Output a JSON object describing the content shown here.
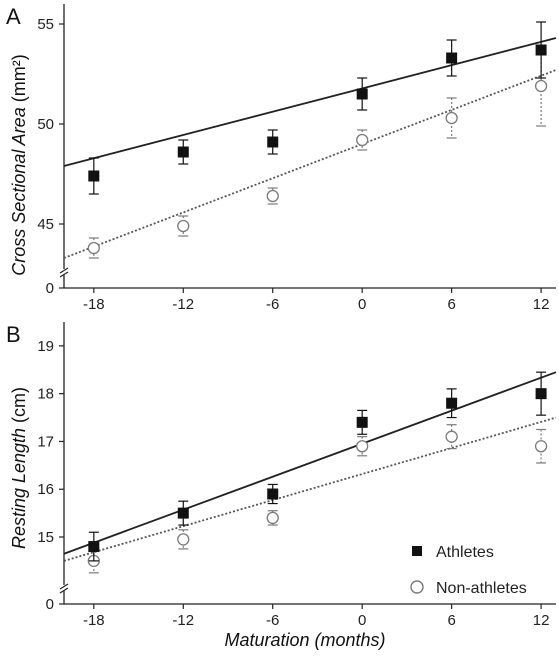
{
  "chart_data": [
    {
      "type": "scatter",
      "panel": "A",
      "ylabel": "Cross Sectional Area",
      "ylabel_unit": " (mm²)",
      "x": [
        -18,
        -12,
        -6,
        0,
        6,
        12
      ],
      "xlim": [
        -20,
        13
      ],
      "ylim": [
        43,
        56
      ],
      "y_axis_break": true,
      "y_break_label": "0",
      "yticks": [
        45,
        50,
        55
      ],
      "xticklabels": [
        "-18",
        "-12",
        "-6",
        "0",
        "6",
        "12"
      ],
      "grid": false,
      "series": [
        {
          "name": "Athletes",
          "marker": "filled-square",
          "line_style": "solid",
          "values": [
            47.4,
            48.6,
            49.1,
            51.5,
            53.3,
            53.7
          ],
          "errors": [
            0.9,
            0.6,
            0.6,
            0.8,
            0.9,
            1.4
          ],
          "fit": {
            "x0": -20,
            "y0": 47.9,
            "x1": 13,
            "y1": 54.3
          }
        },
        {
          "name": "Non-athletes",
          "marker": "open-circle",
          "line_style": "dotted",
          "values": [
            43.8,
            44.9,
            46.4,
            49.2,
            50.3,
            51.9
          ],
          "errors": [
            0.5,
            0.5,
            0.4,
            0.5,
            1.0,
            2.0
          ],
          "fit": {
            "x0": -20,
            "y0": 43.3,
            "x1": 13,
            "y1": 52.7
          }
        }
      ]
    },
    {
      "type": "scatter",
      "panel": "B",
      "ylabel": "Resting Length",
      "ylabel_unit": " (cm)",
      "xlabel": "Maturation (months)",
      "x": [
        -18,
        -12,
        -6,
        0,
        6,
        12
      ],
      "xlim": [
        -20,
        13
      ],
      "ylim": [
        14.1,
        19.5
      ],
      "y_axis_break": true,
      "y_break_label": "0",
      "yticks": [
        15,
        16,
        17,
        18,
        19
      ],
      "xticklabels": [
        "-18",
        "-12",
        "-6",
        "0",
        "6",
        "12"
      ],
      "grid": false,
      "legend_position": "bottom-right",
      "series": [
        {
          "name": "Athletes",
          "marker": "filled-square",
          "line_style": "solid",
          "values": [
            14.8,
            15.5,
            15.9,
            17.4,
            17.8,
            18.0
          ],
          "errors": [
            0.3,
            0.25,
            0.2,
            0.25,
            0.3,
            0.45
          ],
          "fit": {
            "x0": -20,
            "y0": 14.65,
            "x1": 13,
            "y1": 18.45
          }
        },
        {
          "name": "Non-athletes",
          "marker": "open-circle",
          "line_style": "dotted",
          "values": [
            14.5,
            14.95,
            15.4,
            16.9,
            17.1,
            16.9
          ],
          "errors": [
            0.25,
            0.2,
            0.15,
            0.2,
            0.25,
            0.35
          ],
          "fit": {
            "x0": -20,
            "y0": 14.5,
            "x1": 13,
            "y1": 17.5
          }
        }
      ]
    }
  ],
  "labels": {
    "panel_a": "A",
    "panel_b": "B"
  },
  "colors": {
    "athletes": "#111111",
    "non_athletes": "#7a7a7a",
    "axis": "#222222"
  }
}
